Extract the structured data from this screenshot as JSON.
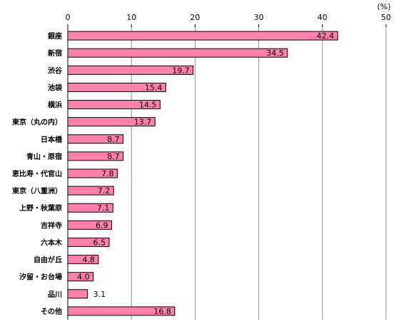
{
  "chart_data": {
    "type": "bar",
    "orientation": "horizontal",
    "title": "",
    "xlabel": "",
    "ylabel": "",
    "unit_label": "(%)",
    "xlim": [
      0,
      50
    ],
    "x_ticks": [
      0,
      10,
      20,
      30,
      40,
      50
    ],
    "grid": true,
    "bar_color": "#ff80a8",
    "bar_border": "#000000",
    "categories": [
      "銀座",
      "新宿",
      "渋谷",
      "池袋",
      "横浜",
      "東京（丸の内）",
      "日本橋",
      "青山・原宿",
      "恵比寿・代官山",
      "東京（八重洲）",
      "上野・秋葉原",
      "吉祥寺",
      "六本木",
      "自由が丘",
      "汐留・お台場",
      "品川",
      "その他"
    ],
    "values": [
      42.4,
      34.5,
      19.7,
      15.4,
      14.5,
      13.7,
      8.7,
      8.7,
      7.8,
      7.2,
      7.1,
      6.9,
      6.5,
      4.8,
      4.0,
      3.1,
      16.8
    ],
    "value_labels": [
      "42.4",
      "34.5",
      "19.7",
      "15.4",
      "14.5",
      "13.7",
      "8.7",
      "8.7",
      "7.8",
      "7.2",
      "7.1",
      "6.9",
      "6.5",
      "4.8",
      "4.0",
      "3.1",
      "16.8"
    ]
  }
}
